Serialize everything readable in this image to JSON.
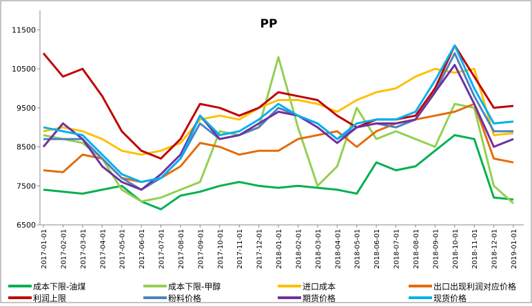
{
  "chart_data": {
    "type": "line",
    "title": "PP",
    "categories": [
      "2017-01-01",
      "2017-02-01",
      "2017-03-01",
      "2017-04-01",
      "2017-05-01",
      "2017-06-01",
      "2017-07-01",
      "2017-08-01",
      "2017-09-01",
      "2017-10-01",
      "2017-11-01",
      "2017-12-01",
      "2018-01-01",
      "2018-02-01",
      "2018-03-01",
      "2018-04-01",
      "2018-05-01",
      "2018-06-01",
      "2018-07-01",
      "2018-08-01",
      "2018-09-01",
      "2018-10-01",
      "2018-11-01",
      "2018-12-01",
      "2019-01-01"
    ],
    "ylim": [
      6500,
      12000
    ],
    "yticks": [
      6500,
      7500,
      8500,
      9500,
      10500,
      11500
    ],
    "grid": false,
    "series": [
      {
        "name": "成本下限-油煤",
        "color": "#00b050",
        "values": [
          7400,
          7350,
          7300,
          7400,
          7500,
          7100,
          6900,
          7250,
          7350,
          7500,
          7600,
          7500,
          7450,
          7500,
          7450,
          7400,
          7300,
          8100,
          7900,
          8000,
          8400,
          8800,
          8700,
          7200,
          7150
        ]
      },
      {
        "name": "成本下限-甲醇",
        "color": "#92d050",
        "values": [
          8800,
          8700,
          8600,
          8200,
          7400,
          7100,
          7200,
          7400,
          7600,
          8900,
          8800,
          9000,
          10800,
          9000,
          7500,
          8000,
          9500,
          8700,
          8900,
          8700,
          8500,
          9600,
          9500,
          7500,
          7050
        ]
      },
      {
        "name": "进口成本",
        "color": "#ffc000",
        "values": [
          8900,
          9000,
          8900,
          8700,
          8400,
          8300,
          8400,
          8600,
          9200,
          9300,
          9200,
          9500,
          9700,
          9700,
          9600,
          9400,
          9700,
          9900,
          10000,
          10300,
          10500,
          10400,
          10500,
          8800,
          8850
        ]
      },
      {
        "name": "出口出现利润对应价格",
        "color": "#e46c0a",
        "values": [
          7900,
          7850,
          8300,
          8200,
          7700,
          7600,
          7700,
          8000,
          8600,
          8500,
          8300,
          8400,
          8400,
          8700,
          8800,
          8900,
          8500,
          8900,
          9100,
          9200,
          9300,
          9400,
          9600,
          8200,
          8100
        ]
      },
      {
        "name": "利润上限",
        "color": "#c00000",
        "values": [
          10900,
          10300,
          10500,
          9800,
          8900,
          8400,
          8200,
          8700,
          9600,
          9500,
          9300,
          9500,
          9900,
          9800,
          9700,
          9300,
          9000,
          9200,
          9200,
          9300,
          10000,
          11100,
          10300,
          9500,
          9550
        ]
      },
      {
        "name": "粉料价格",
        "color": "#4f81bd",
        "values": [
          8700,
          8700,
          8700,
          8200,
          7700,
          7400,
          7700,
          8200,
          9100,
          8700,
          8800,
          9000,
          9500,
          9300,
          9100,
          8700,
          9000,
          9100,
          9000,
          9200,
          9900,
          10900,
          9800,
          8900,
          8900
        ]
      },
      {
        "name": "期货价格",
        "color": "#7030a0",
        "values": [
          8500,
          9100,
          8700,
          8000,
          7600,
          7400,
          7800,
          8300,
          9300,
          8700,
          8800,
          9100,
          9400,
          9300,
          9000,
          8600,
          9000,
          9100,
          9100,
          9200,
          9900,
          10600,
          9600,
          8500,
          8700
        ]
      },
      {
        "name": "现货价格",
        "color": "#00b0f0",
        "values": [
          9000,
          8900,
          8800,
          8300,
          7800,
          7600,
          7700,
          8200,
          9300,
          8800,
          8900,
          9200,
          9600,
          9300,
          9100,
          8700,
          9100,
          9200,
          9200,
          9400,
          10200,
          11100,
          10000,
          9100,
          9150
        ]
      }
    ]
  }
}
